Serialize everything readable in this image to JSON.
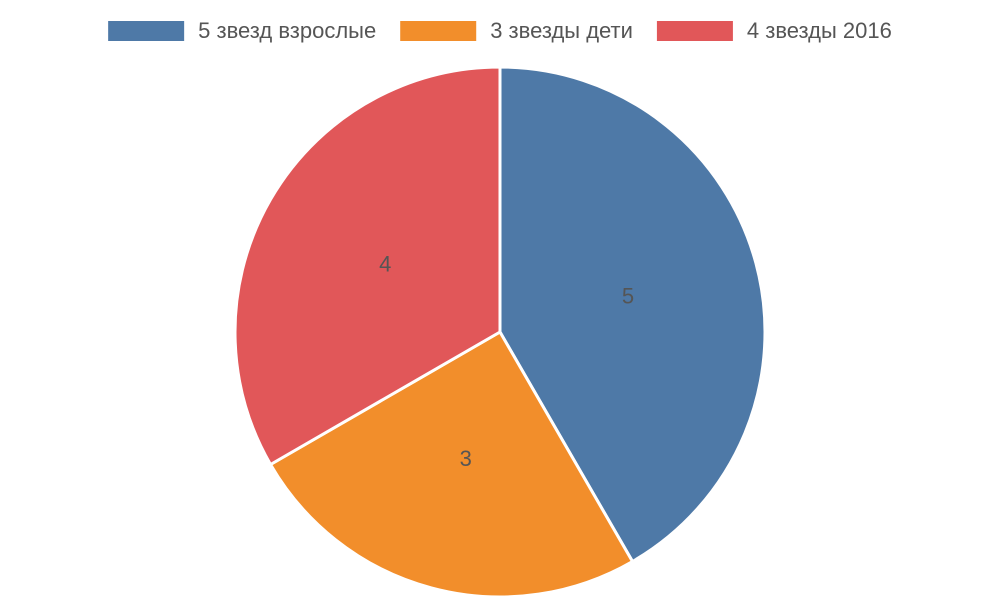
{
  "chart_data": {
    "type": "pie",
    "categories": [
      "5 звезд взрослые",
      "3 звезды дети",
      "4 звезды 2016"
    ],
    "values": [
      5,
      3,
      4
    ],
    "colors": [
      "#4e79a7",
      "#f28e2b",
      "#e15759"
    ],
    "legend": "top"
  }
}
